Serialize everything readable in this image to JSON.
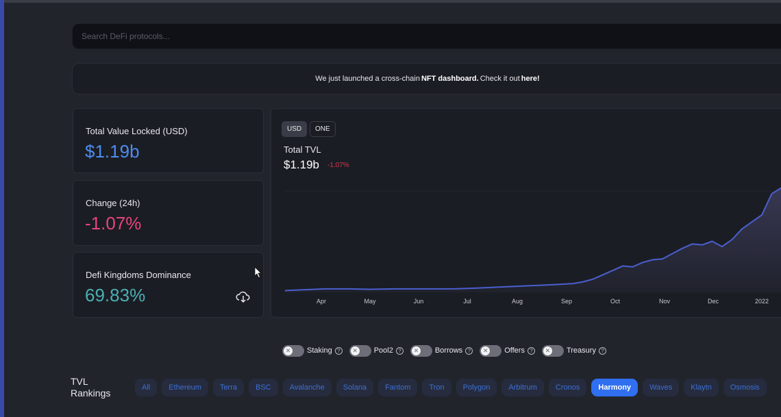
{
  "search": {
    "placeholder": "Search DeFi protocols..."
  },
  "banner": {
    "text_1": "We just launched a cross-chain",
    "link_1": "NFT dashboard.",
    "text_2": "Check it out",
    "link_2": "here!"
  },
  "stats": {
    "tvl_label": "Total Value Locked (USD)",
    "tvl_value": "$1.19b",
    "change_label": "Change (24h)",
    "change_value": "-1.07%",
    "dominance_label": "Defi Kingdoms Dominance",
    "dominance_value": "69.83%"
  },
  "chart": {
    "currency_buttons": [
      "USD",
      "ONE"
    ],
    "selected_currency": "USD",
    "title": "Total TVL",
    "value": "$1.19b",
    "change": "-1.07%",
    "colors": {
      "line": "#4a5fd0",
      "fill": "#3b3b58",
      "negative": "#d8364a"
    }
  },
  "toggles": [
    {
      "label": "Staking",
      "on": false
    },
    {
      "label": "Pool2",
      "on": false
    },
    {
      "label": "Borrows",
      "on": false
    },
    {
      "label": "Offers",
      "on": false
    },
    {
      "label": "Treasury",
      "on": false
    }
  ],
  "rankings": {
    "title_line1": "TVL",
    "title_line2": "Rankings",
    "chips": [
      "All",
      "Ethereum",
      "Terra",
      "BSC",
      "Avalanche",
      "Solana",
      "Fantom",
      "Tron",
      "Polygon",
      "Arbitrum",
      "Cronos",
      "Harmony",
      "Waves",
      "Klaytn",
      "Osmosis"
    ],
    "active": "Harmony"
  },
  "chart_data": {
    "type": "area",
    "x_tick_labels": [
      "Apr",
      "May",
      "Jun",
      "Jul",
      "Aug",
      "Sep",
      "Oct",
      "Nov",
      "Dec",
      "2022"
    ],
    "x": [
      0,
      4,
      8,
      13,
      17,
      22,
      26,
      30,
      34,
      39,
      43,
      47,
      51,
      55,
      58,
      60,
      62,
      64,
      66,
      68,
      70,
      72,
      74,
      76,
      78,
      80,
      82,
      84,
      86,
      88,
      90,
      92,
      94,
      96,
      98,
      100
    ],
    "y": [
      0.02,
      0.03,
      0.04,
      0.04,
      0.035,
      0.04,
      0.04,
      0.04,
      0.04,
      0.05,
      0.06,
      0.07,
      0.08,
      0.09,
      0.1,
      0.12,
      0.15,
      0.2,
      0.25,
      0.3,
      0.29,
      0.34,
      0.37,
      0.38,
      0.44,
      0.5,
      0.55,
      0.54,
      0.58,
      0.52,
      0.6,
      0.72,
      0.8,
      0.88,
      1.12,
      1.19
    ],
    "y_unit": "billion USD (approx.)",
    "grid": false,
    "legend": "none"
  }
}
